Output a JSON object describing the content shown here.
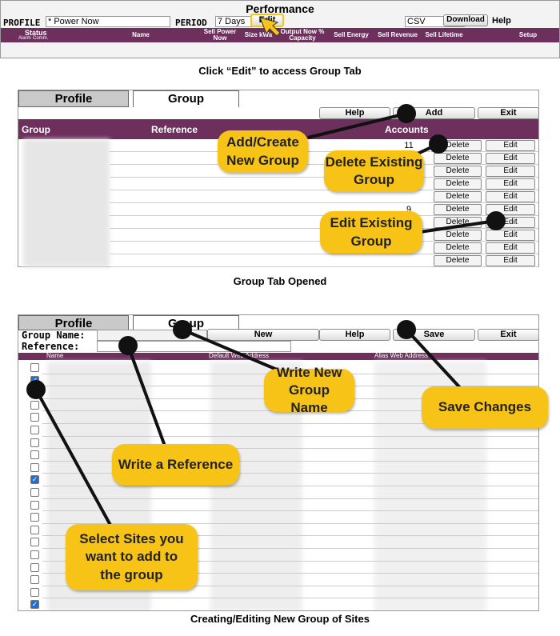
{
  "toolbar": {
    "title": "Performance",
    "profile_label": "PROFILE",
    "profile_value": "* Power Now",
    "period_label": "PERIOD",
    "period_value": "7 Days",
    "edit": "Edit",
    "export_value": "CSV",
    "download": "Download",
    "help": "Help"
  },
  "perf_header": {
    "status": "Status",
    "alarm": "Alarm",
    "comm": "Comm.",
    "columns": [
      "Name",
      "Sell Power Now",
      "Size kWa",
      "Output Now % Capacity",
      "Sell Energy",
      "Sell Revenue",
      "Sell Lifetime",
      "Setup"
    ]
  },
  "caption1": "Click “Edit” to access Group Tab",
  "group_tab": {
    "tabs": [
      "Profile",
      "Group"
    ],
    "buttons": [
      "Help",
      "Add",
      "Exit"
    ],
    "columns": [
      "Group",
      "Reference",
      "Accounts"
    ],
    "accounts": [
      "11",
      null,
      null,
      null,
      null,
      "9",
      null,
      null,
      null,
      null
    ],
    "row_buttons": [
      "Delete",
      "Edit"
    ],
    "callouts": [
      "Add/Create New Group",
      "Delete Existing Group",
      "Edit Existing Group"
    ]
  },
  "caption2": "Group Tab Opened",
  "edit_tab": {
    "tabs": [
      "Profile",
      "Group"
    ],
    "group_name_label": "Group Name:",
    "reference_label": "Reference:",
    "buttons": [
      "New",
      "Help",
      "Save",
      "Exit"
    ],
    "columns": [
      "Name",
      "Default Web Address",
      "Alias Web Address"
    ],
    "checked": [
      false,
      true,
      false,
      false,
      false,
      false,
      false,
      false,
      false,
      true,
      false,
      false,
      false,
      false,
      false,
      false,
      false,
      false,
      false,
      true
    ],
    "callouts": [
      "Write New Group Name",
      "Save Changes",
      "Write a Reference",
      "Select Sites you want to add to the group"
    ]
  },
  "caption3": "Creating/Editing New Group of Sites"
}
